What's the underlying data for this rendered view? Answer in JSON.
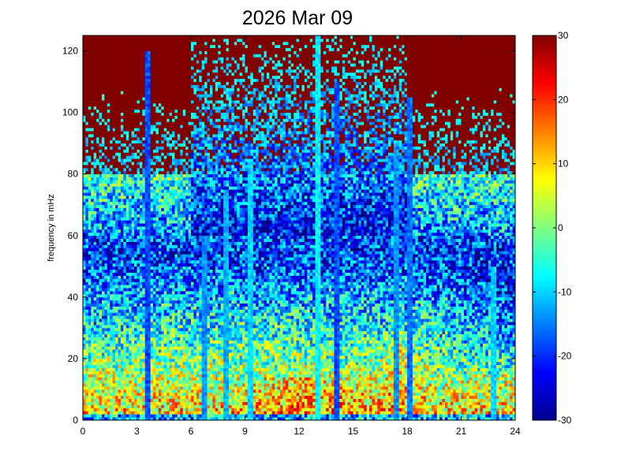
{
  "chart_data": {
    "type": "heatmap",
    "title": "2026 Mar 09",
    "xlabel": "",
    "ylabel": "frequency in mHz",
    "xlim": [
      0,
      24
    ],
    "ylim": [
      0,
      125
    ],
    "x_ticks": [
      0,
      3,
      6,
      9,
      12,
      15,
      18,
      21,
      24
    ],
    "y_ticks": [
      0,
      20,
      40,
      60,
      80,
      100,
      120
    ],
    "colorbar": {
      "colormap": "jet",
      "clim": [
        -30,
        30
      ],
      "ticks": [
        -30,
        -20,
        -10,
        0,
        10,
        20,
        30
      ],
      "location": "right"
    },
    "grid": false,
    "features": [
      {
        "x": 13.0,
        "y_from": 0,
        "y_to": 125,
        "level": -8
      },
      {
        "x": 9.3,
        "y_from": 0,
        "y_to": 85,
        "level": -10
      },
      {
        "x": 8.0,
        "y_from": 0,
        "y_to": 75,
        "level": -12
      },
      {
        "x": 6.8,
        "y_from": 0,
        "y_to": 60,
        "level": -14
      },
      {
        "x": 17.4,
        "y_from": 0,
        "y_to": 90,
        "level": -14
      },
      {
        "x": 18.2,
        "y_from": 0,
        "y_to": 105,
        "level": -16
      },
      {
        "x": 22.8,
        "y_from": 0,
        "y_to": 50,
        "level": -10
      },
      {
        "x": 3.6,
        "y_from": 0,
        "y_to": 120,
        "level": -18
      },
      {
        "x": 14.1,
        "y_from": 0,
        "y_to": 110,
        "level": -18
      }
    ]
  }
}
